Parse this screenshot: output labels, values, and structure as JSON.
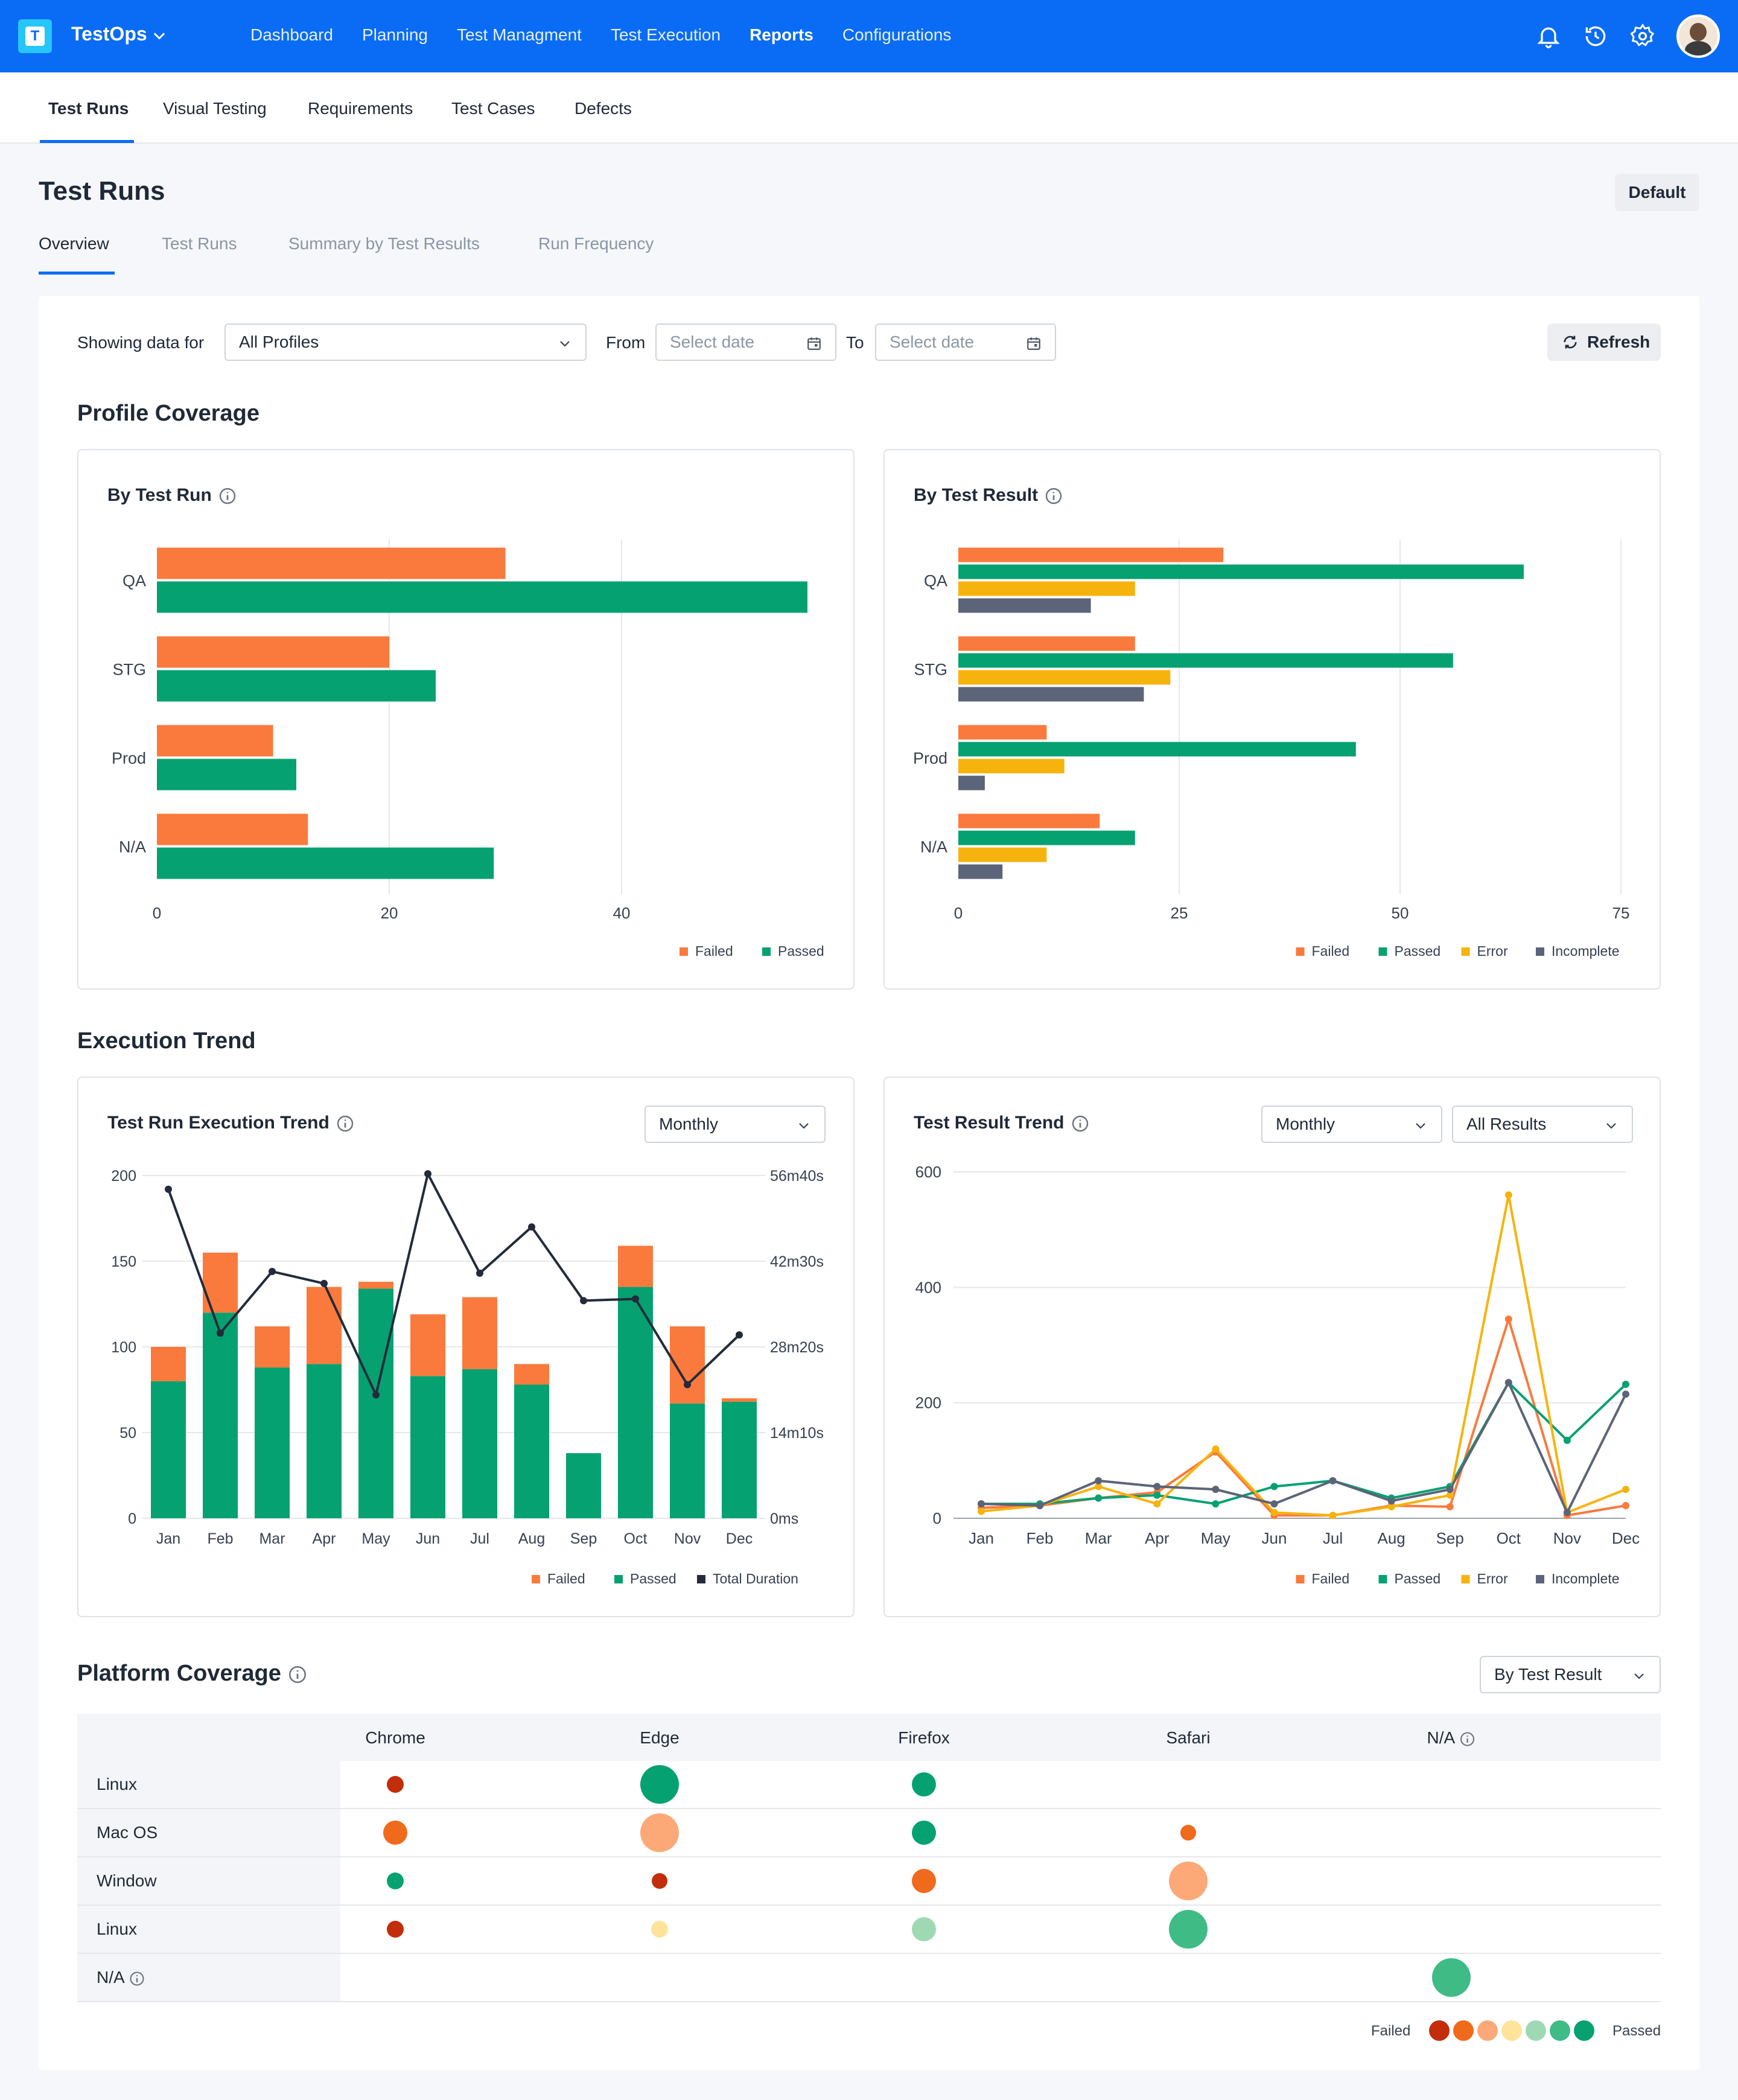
{
  "app": {
    "title": "TestOps",
    "nav": [
      "Dashboard",
      "Planning",
      "Test Managment",
      "Test Execution",
      "Reports",
      "Configurations"
    ],
    "active_nav": "Reports"
  },
  "subnav": {
    "items": [
      "Test Runs",
      "Visual Testing",
      "Requirements",
      "Test Cases",
      "Defects"
    ],
    "active": "Test Runs"
  },
  "page": {
    "title": "Test Runs",
    "default_btn": "Default",
    "tabs": [
      "Overview",
      "Test Runs",
      "Summary by Test Results",
      "Run Frequency"
    ]
  },
  "filters": {
    "showing_label": "Showing data for",
    "profile": "All Profiles",
    "from_label": "From",
    "from_placeholder": "Select date",
    "to_label": "To",
    "to_placeholder": "Select date",
    "refresh": "Refresh"
  },
  "sections": {
    "profile_coverage": "Profile Coverage",
    "execution_trend": "Execution Trend",
    "platform_coverage": "Platform Coverage"
  },
  "colors": {
    "failed": "#fa7a3d",
    "passed": "#05a171",
    "error": "#f7b30d",
    "incomplete": "#5b6478",
    "duration": "#232b3b",
    "brand": "#0a6cf4"
  },
  "chart_data": [
    {
      "id": "by_test_run",
      "type": "bar",
      "orientation": "horizontal",
      "title": "By Test Run",
      "categories": [
        "QA",
        "STG",
        "Prod",
        "N/A"
      ],
      "series": [
        {
          "name": "Failed",
          "values": [
            30,
            20,
            10,
            13
          ]
        },
        {
          "name": "Passed",
          "values": [
            56,
            24,
            12,
            29
          ]
        }
      ],
      "xlim": [
        0,
        56
      ],
      "xticks": [
        0,
        20,
        40
      ]
    },
    {
      "id": "by_test_result",
      "type": "bar",
      "orientation": "horizontal",
      "title": "By Test Result",
      "categories": [
        "QA",
        "STG",
        "Prod",
        "N/A"
      ],
      "series": [
        {
          "name": "Failed",
          "values": [
            30,
            20,
            10,
            16
          ]
        },
        {
          "name": "Passed",
          "values": [
            64,
            56,
            45,
            20
          ]
        },
        {
          "name": "Error",
          "values": [
            20,
            24,
            12,
            10
          ]
        },
        {
          "name": "Incomplete",
          "values": [
            15,
            21,
            3,
            5
          ]
        }
      ],
      "xlim": [
        0,
        75
      ],
      "xticks": [
        0,
        25,
        50,
        75
      ]
    },
    {
      "id": "run_execution_trend",
      "type": "bar",
      "stacked": true,
      "title": "Test Run Execution Trend",
      "interval": "Monthly",
      "categories": [
        "Jan",
        "Feb",
        "Mar",
        "Apr",
        "May",
        "Jun",
        "Jul",
        "Aug",
        "Sep",
        "Oct",
        "Nov",
        "Dec"
      ],
      "series": [
        {
          "name": "Failed",
          "values": [
            20,
            35,
            24,
            45,
            4,
            36,
            42,
            12,
            0,
            24,
            45,
            2
          ]
        },
        {
          "name": "Passed",
          "values": [
            80,
            120,
            88,
            90,
            134,
            83,
            87,
            78,
            38,
            135,
            67,
            68
          ]
        },
        {
          "name": "Total Duration",
          "axis": "right",
          "values": [
            192,
            108,
            144,
            137,
            72,
            201,
            143,
            170,
            127,
            128,
            78,
            107
          ]
        }
      ],
      "ylim": [
        0,
        200
      ],
      "yticks": [
        0,
        50,
        100,
        150,
        200
      ],
      "y2ticks": [
        "0ms",
        "14m10s",
        "28m20s",
        "42m30s",
        "56m40s"
      ]
    },
    {
      "id": "result_trend",
      "type": "line",
      "title": "Test Result Trend",
      "interval": "Monthly",
      "filter": "All Results",
      "categories": [
        "Jan",
        "Feb",
        "Mar",
        "Apr",
        "May",
        "Jun",
        "Jul",
        "Aug",
        "Sep",
        "Oct",
        "Nov",
        "Dec"
      ],
      "series": [
        {
          "name": "Failed",
          "values": [
            18,
            22,
            35,
            45,
            115,
            5,
            5,
            22,
            20,
            345,
            5,
            22
          ]
        },
        {
          "name": "Passed",
          "values": [
            25,
            25,
            35,
            40,
            25,
            55,
            65,
            35,
            55,
            235,
            135,
            232
          ]
        },
        {
          "name": "Error",
          "values": [
            12,
            22,
            55,
            25,
            120,
            10,
            5,
            20,
            40,
            560,
            10,
            50
          ]
        },
        {
          "name": "Incomplete",
          "values": [
            25,
            22,
            65,
            55,
            50,
            25,
            65,
            30,
            50,
            235,
            10,
            215
          ]
        }
      ],
      "ylim": [
        0,
        600
      ],
      "yticks": [
        0,
        200,
        400,
        600
      ]
    }
  ],
  "platform": {
    "sort": "By Test Result",
    "columns": [
      "Chrome",
      "Edge",
      "Firefox",
      "Safari",
      "N/A"
    ],
    "rows": [
      "Linux",
      "Mac OS",
      "Window",
      "Linux",
      "N/A"
    ],
    "legend_low": "Failed",
    "legend_high": "Passed",
    "scale": [
      "#c22d0c",
      "#f06a1c",
      "#fca877",
      "#fde49a",
      "#9fd9b3",
      "#3fbb86",
      "#05a171"
    ],
    "cells": [
      {
        "r": 0,
        "c": 0,
        "level": 0,
        "size": 28
      },
      {
        "r": 0,
        "c": 1,
        "level": 6,
        "size": 64
      },
      {
        "r": 0,
        "c": 2,
        "level": 6,
        "size": 40
      },
      {
        "r": 1,
        "c": 0,
        "level": 1,
        "size": 40
      },
      {
        "r": 1,
        "c": 1,
        "level": 2,
        "size": 64
      },
      {
        "r": 1,
        "c": 2,
        "level": 6,
        "size": 40
      },
      {
        "r": 1,
        "c": 3,
        "level": 1,
        "size": 26
      },
      {
        "r": 2,
        "c": 0,
        "level": 6,
        "size": 28
      },
      {
        "r": 2,
        "c": 1,
        "level": 0,
        "size": 26
      },
      {
        "r": 2,
        "c": 2,
        "level": 1,
        "size": 40
      },
      {
        "r": 2,
        "c": 3,
        "level": 2,
        "size": 64
      },
      {
        "r": 3,
        "c": 0,
        "level": 0,
        "size": 28
      },
      {
        "r": 3,
        "c": 1,
        "level": 3,
        "size": 28
      },
      {
        "r": 3,
        "c": 2,
        "level": 4,
        "size": 40
      },
      {
        "r": 3,
        "c": 3,
        "level": 5,
        "size": 64
      },
      {
        "r": 4,
        "c": 4,
        "level": 5,
        "size": 64
      }
    ]
  }
}
